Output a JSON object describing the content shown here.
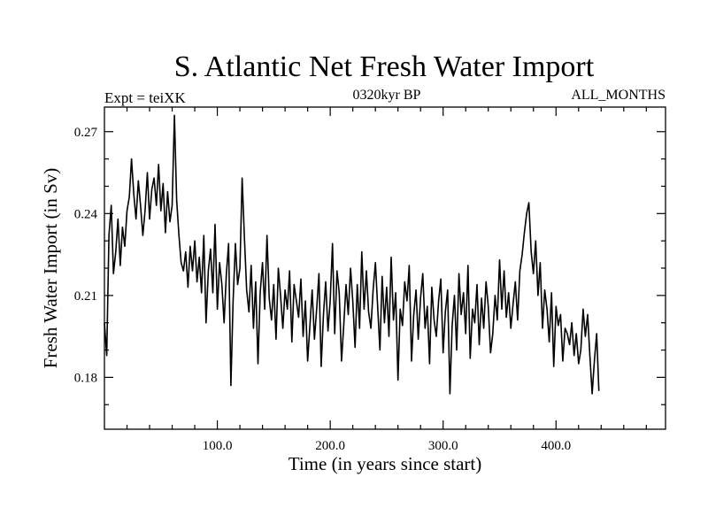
{
  "chart_data": {
    "type": "line",
    "title": "S. Atlantic Net Fresh Water Import",
    "subtitle_left": "Expt = teiXK",
    "subtitle_center": "0320kyr BP",
    "subtitle_right": "ALL_MONTHS",
    "xlabel": "Time (in years since start)",
    "ylabel": "Fresh Water Import (in Sv)",
    "xlim": [
      0,
      497
    ],
    "ylim": [
      0.161,
      0.279
    ],
    "x_ticks": [
      100,
      200,
      300,
      400
    ],
    "x_tick_labels": [
      "100.0",
      "200.0",
      "300.0",
      "400.0"
    ],
    "y_ticks": [
      0.18,
      0.21,
      0.24,
      0.27
    ],
    "y_tick_labels": [
      "0.18",
      "0.21",
      "0.24",
      "0.27"
    ],
    "grid": false,
    "line_color": "#000000",
    "series": [
      {
        "x_start": 0,
        "x_step": 2,
        "values": [
          0.2,
          0.188,
          0.232,
          0.243,
          0.218,
          0.226,
          0.238,
          0.221,
          0.235,
          0.228,
          0.241,
          0.246,
          0.26,
          0.247,
          0.238,
          0.252,
          0.243,
          0.232,
          0.241,
          0.255,
          0.238,
          0.249,
          0.253,
          0.243,
          0.258,
          0.241,
          0.251,
          0.233,
          0.248,
          0.237,
          0.243,
          0.276,
          0.245,
          0.232,
          0.222,
          0.219,
          0.226,
          0.213,
          0.228,
          0.219,
          0.23,
          0.215,
          0.224,
          0.211,
          0.232,
          0.2,
          0.219,
          0.227,
          0.211,
          0.236,
          0.205,
          0.222,
          0.214,
          0.2,
          0.218,
          0.229,
          0.177,
          0.208,
          0.229,
          0.214,
          0.22,
          0.253,
          0.231,
          0.212,
          0.204,
          0.221,
          0.198,
          0.215,
          0.185,
          0.211,
          0.222,
          0.205,
          0.232,
          0.209,
          0.201,
          0.214,
          0.194,
          0.22,
          0.21,
          0.198,
          0.212,
          0.205,
          0.219,
          0.193,
          0.214,
          0.208,
          0.202,
          0.216,
          0.195,
          0.208,
          0.186,
          0.199,
          0.212,
          0.194,
          0.205,
          0.218,
          0.184,
          0.203,
          0.215,
          0.197,
          0.208,
          0.229,
          0.196,
          0.219,
          0.211,
          0.186,
          0.199,
          0.214,
          0.203,
          0.22,
          0.208,
          0.191,
          0.214,
          0.198,
          0.226,
          0.205,
          0.219,
          0.204,
          0.198,
          0.212,
          0.222,
          0.206,
          0.19,
          0.217,
          0.2,
          0.213,
          0.195,
          0.224,
          0.201,
          0.211,
          0.179,
          0.205,
          0.199,
          0.215,
          0.208,
          0.221,
          0.186,
          0.203,
          0.212,
          0.194,
          0.209,
          0.218,
          0.198,
          0.206,
          0.185,
          0.213,
          0.201,
          0.195,
          0.208,
          0.216,
          0.189,
          0.204,
          0.212,
          0.174,
          0.199,
          0.21,
          0.19,
          0.218,
          0.203,
          0.211,
          0.196,
          0.221,
          0.187,
          0.205,
          0.2,
          0.214,
          0.192,
          0.209,
          0.198,
          0.215,
          0.206,
          0.189,
          0.196,
          0.21,
          0.201,
          0.223,
          0.205,
          0.219,
          0.202,
          0.211,
          0.198,
          0.207,
          0.215,
          0.201,
          0.219,
          0.225,
          0.233,
          0.24,
          0.244,
          0.226,
          0.218,
          0.23,
          0.21,
          0.222,
          0.198,
          0.212,
          0.205,
          0.193,
          0.211,
          0.184,
          0.206,
          0.199,
          0.203,
          0.186,
          0.198,
          0.196,
          0.192,
          0.2,
          0.188,
          0.196,
          0.185,
          0.19,
          0.205,
          0.195,
          0.203,
          0.188,
          0.174,
          0.186,
          0.196,
          0.175
        ]
      }
    ]
  }
}
